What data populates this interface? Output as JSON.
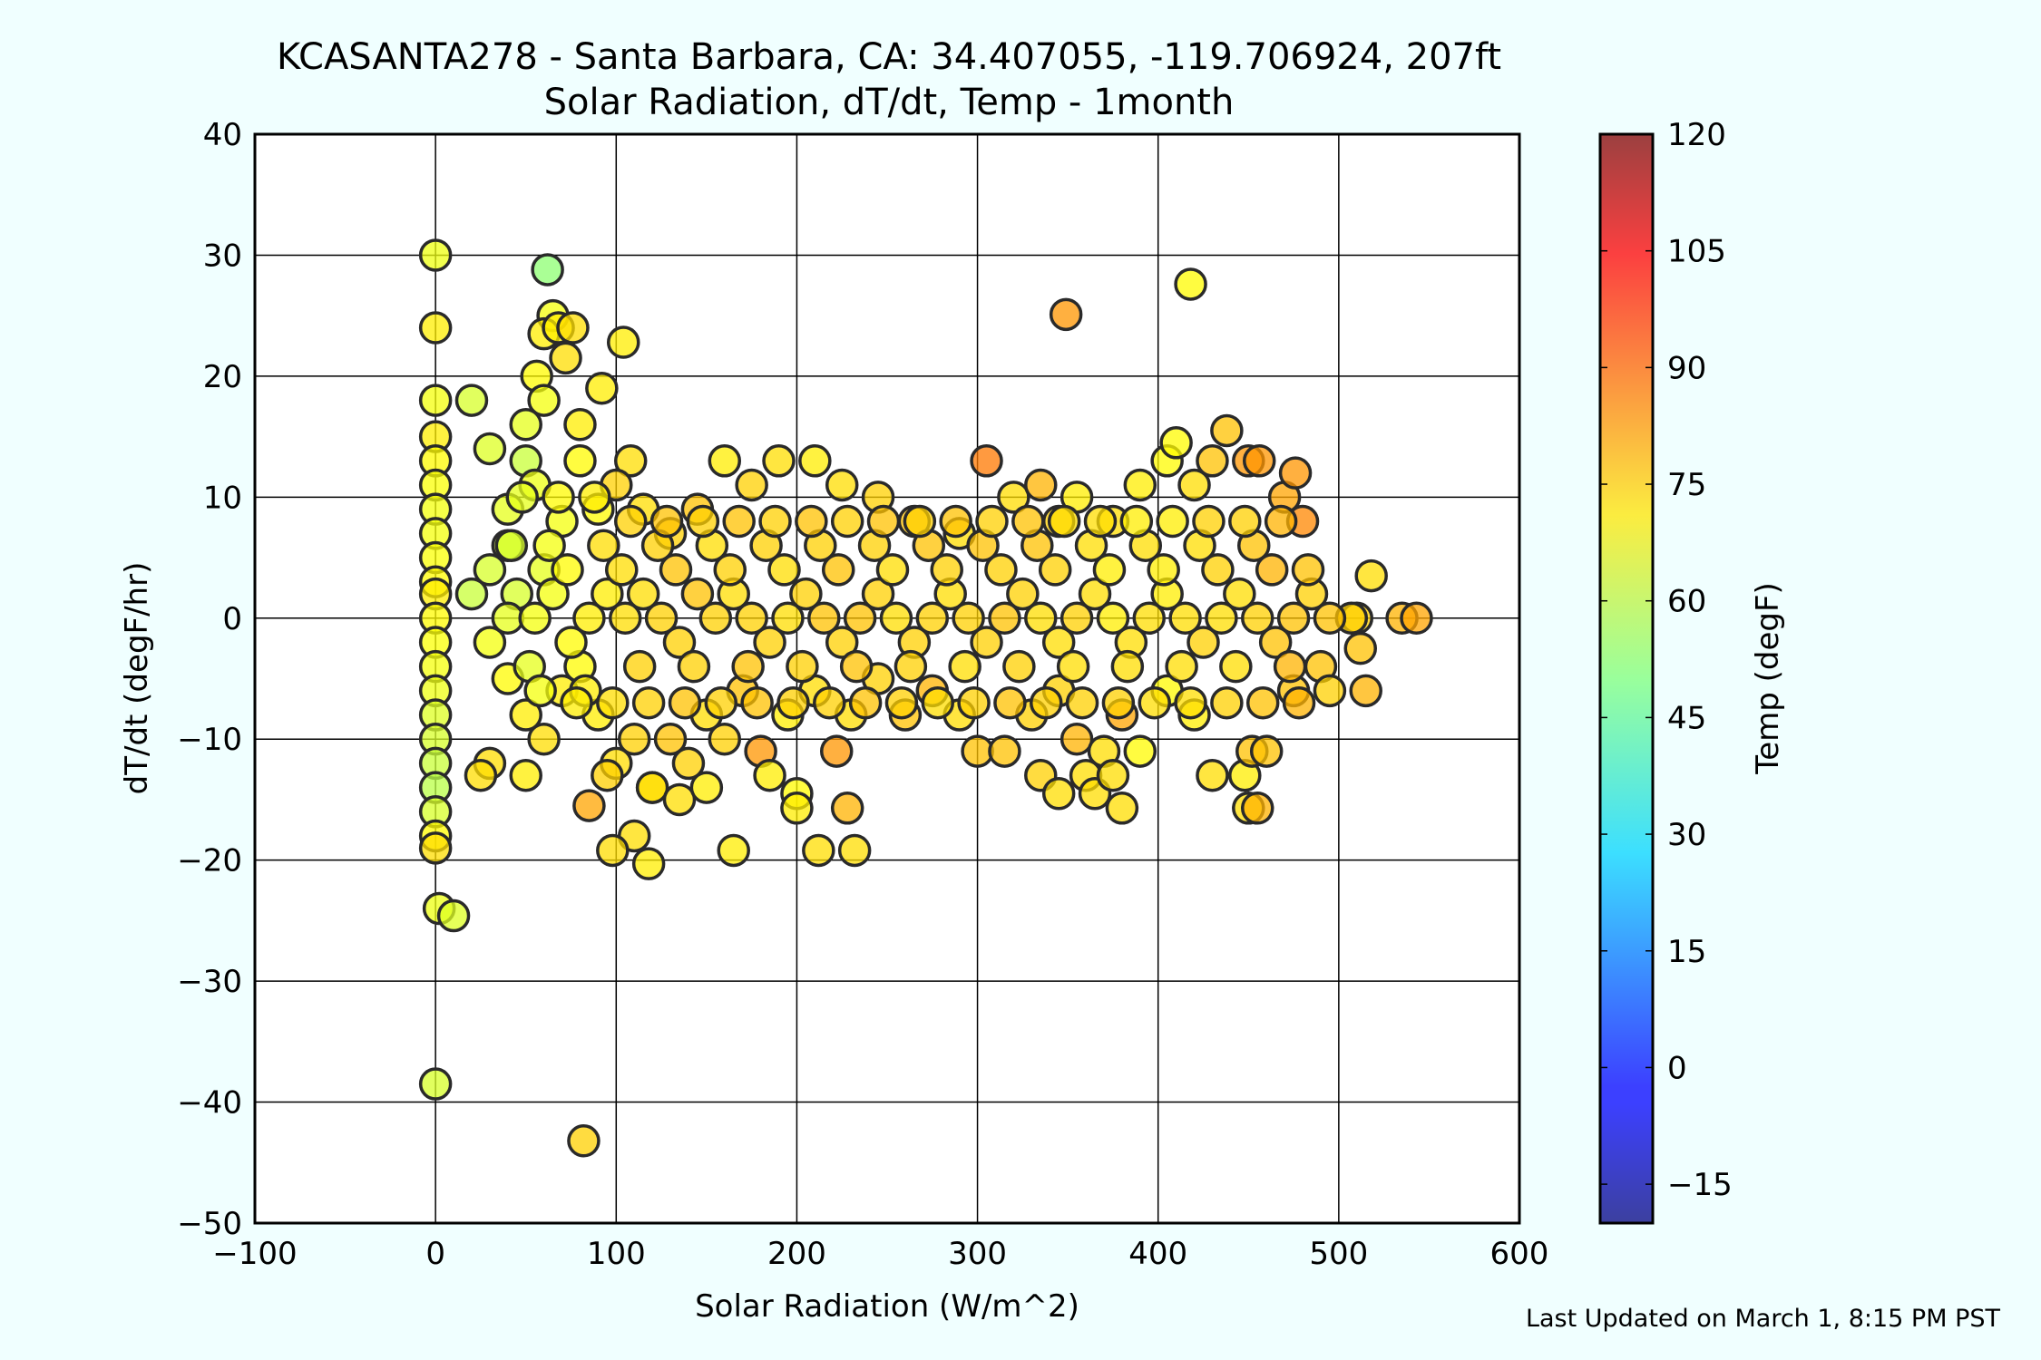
{
  "chart_data": {
    "type": "scatter",
    "title": "KCASANTA278 - Santa Barbara, CA: 34.407055, -119.706924, 207ft",
    "subtitle": "Solar Radiation, dT/dt, Temp - 1month",
    "xlabel": "Solar Radiation (W/m^2)",
    "ylabel": "dT/dt (degF/hr)",
    "xlim": [
      -100,
      600
    ],
    "ylim": [
      -50,
      40
    ],
    "xticks": [
      -100,
      0,
      100,
      200,
      300,
      400,
      500,
      600
    ],
    "yticks": [
      -50,
      -40,
      -30,
      -20,
      -10,
      0,
      10,
      20,
      30,
      40
    ],
    "grid": true,
    "colorbar": {
      "label": "Temp (degF)",
      "range": [
        -20,
        120
      ],
      "ticks": [
        -15,
        0,
        15,
        30,
        45,
        60,
        75,
        90,
        105,
        120
      ],
      "colormap": "jet"
    },
    "footer": "Last Updated on March 1, 8:15 PM PST",
    "points": [
      [
        0,
        30,
        65
      ],
      [
        0,
        24,
        70
      ],
      [
        0,
        18,
        66
      ],
      [
        0,
        15,
        70
      ],
      [
        0,
        13,
        68
      ],
      [
        0,
        11,
        67
      ],
      [
        0,
        9,
        66
      ],
      [
        0,
        7,
        66
      ],
      [
        0,
        5,
        67
      ],
      [
        0,
        3,
        68
      ],
      [
        0,
        2,
        70
      ],
      [
        0,
        0,
        68
      ],
      [
        0,
        -2,
        67
      ],
      [
        0,
        -4,
        66
      ],
      [
        0,
        -6,
        65
      ],
      [
        0,
        -8,
        63
      ],
      [
        0,
        -10,
        62
      ],
      [
        0,
        -12,
        60
      ],
      [
        0,
        -14,
        58
      ],
      [
        0,
        -16,
        62
      ],
      [
        0,
        -18,
        68
      ],
      [
        0,
        -19,
        72
      ],
      [
        0,
        -38.5,
        62
      ],
      [
        2,
        -24,
        65
      ],
      [
        10,
        -24.6,
        63
      ],
      [
        20,
        18,
        62
      ],
      [
        30,
        14,
        63
      ],
      [
        50,
        13,
        60
      ],
      [
        62,
        28.8,
        52
      ],
      [
        65,
        25,
        66
      ],
      [
        60,
        23.5,
        70
      ],
      [
        68,
        24,
        70
      ],
      [
        76,
        24,
        72
      ],
      [
        72,
        21.5,
        72
      ],
      [
        56,
        20,
        68
      ],
      [
        60,
        18,
        66
      ],
      [
        50,
        16,
        64
      ],
      [
        80,
        16,
        70
      ],
      [
        92,
        19,
        70
      ],
      [
        104,
        22.8,
        70
      ],
      [
        80,
        13,
        68
      ],
      [
        108,
        13,
        72
      ],
      [
        55,
        11,
        65
      ],
      [
        40,
        9,
        64
      ],
      [
        40,
        6,
        62
      ],
      [
        30,
        4,
        62
      ],
      [
        20,
        2,
        60
      ],
      [
        45,
        2,
        62
      ],
      [
        60,
        4,
        64
      ],
      [
        70,
        8,
        66
      ],
      [
        90,
        9,
        68
      ],
      [
        100,
        11,
        74
      ],
      [
        115,
        9,
        72
      ],
      [
        130,
        7,
        74
      ],
      [
        145,
        9,
        76
      ],
      [
        160,
        13,
        70
      ],
      [
        175,
        11,
        74
      ],
      [
        190,
        13,
        72
      ],
      [
        210,
        13,
        70
      ],
      [
        225,
        11,
        72
      ],
      [
        245,
        10,
        74
      ],
      [
        265,
        8,
        76
      ],
      [
        290,
        7,
        72
      ],
      [
        305,
        13,
        86
      ],
      [
        320,
        10,
        72
      ],
      [
        335,
        11,
        78
      ],
      [
        345,
        8,
        74
      ],
      [
        355,
        10,
        70
      ],
      [
        375,
        8,
        72
      ],
      [
        390,
        11,
        70
      ],
      [
        405,
        13,
        68
      ],
      [
        410,
        14.5,
        68
      ],
      [
        420,
        11,
        72
      ],
      [
        430,
        13,
        76
      ],
      [
        438,
        15.5,
        76
      ],
      [
        450,
        13,
        82
      ],
      [
        456,
        13,
        82
      ],
      [
        470,
        10,
        80
      ],
      [
        476,
        12,
        82
      ],
      [
        480,
        8,
        84
      ],
      [
        30,
        -2,
        66
      ],
      [
        40,
        -5,
        68
      ],
      [
        50,
        -8,
        70
      ],
      [
        60,
        -10,
        72
      ],
      [
        70,
        -6,
        70
      ],
      [
        80,
        -4,
        68
      ],
      [
        90,
        -8,
        70
      ],
      [
        100,
        -12,
        72
      ],
      [
        110,
        -10,
        74
      ],
      [
        120,
        -14,
        72
      ],
      [
        130,
        -10,
        76
      ],
      [
        140,
        -12,
        74
      ],
      [
        150,
        -8,
        72
      ],
      [
        160,
        -10,
        74
      ],
      [
        170,
        -6,
        76
      ],
      [
        180,
        -11,
        82
      ],
      [
        195,
        -8,
        70
      ],
      [
        210,
        -6,
        72
      ],
      [
        222,
        -11,
        82
      ],
      [
        230,
        -8,
        72
      ],
      [
        245,
        -5,
        74
      ],
      [
        260,
        -8,
        76
      ],
      [
        275,
        -6,
        78
      ],
      [
        290,
        -8,
        72
      ],
      [
        300,
        -11,
        76
      ],
      [
        315,
        -11,
        76
      ],
      [
        330,
        -8,
        74
      ],
      [
        345,
        -6,
        74
      ],
      [
        355,
        -10,
        78
      ],
      [
        370,
        -11,
        72
      ],
      [
        380,
        -8,
        80
      ],
      [
        390,
        -11,
        68
      ],
      [
        405,
        -6,
        68
      ],
      [
        420,
        -8,
        70
      ],
      [
        430,
        -13,
        72
      ],
      [
        448,
        -13,
        70
      ],
      [
        452,
        -11,
        76
      ],
      [
        460,
        -11,
        76
      ],
      [
        475,
        -6,
        76
      ],
      [
        490,
        -4,
        76
      ],
      [
        495,
        -6,
        74
      ],
      [
        515,
        -6,
        78
      ],
      [
        50,
        -13,
        70
      ],
      [
        30,
        -12,
        72
      ],
      [
        25,
        -13,
        72
      ],
      [
        85,
        -15.5,
        80
      ],
      [
        95,
        -13,
        74
      ],
      [
        110,
        -18,
        72
      ],
      [
        98,
        -19.2,
        72
      ],
      [
        118,
        -20.3,
        70
      ],
      [
        120,
        -14,
        72
      ],
      [
        135,
        -15,
        72
      ],
      [
        150,
        -14,
        70
      ],
      [
        165,
        -19.2,
        70
      ],
      [
        185,
        -13,
        70
      ],
      [
        200,
        -14.5,
        68
      ],
      [
        200,
        -15.7,
        70
      ],
      [
        212,
        -19.2,
        72
      ],
      [
        228,
        -15.7,
        78
      ],
      [
        232,
        -19.2,
        72
      ],
      [
        335,
        -13,
        74
      ],
      [
        345,
        -14.5,
        72
      ],
      [
        360,
        -13,
        72
      ],
      [
        365,
        -14.5,
        72
      ],
      [
        375,
        -13,
        72
      ],
      [
        380,
        -15.7,
        72
      ],
      [
        450,
        -15.7,
        72
      ],
      [
        455,
        -15.7,
        78
      ],
      [
        82,
        -43.2,
        74
      ],
      [
        349,
        25.1,
        82
      ],
      [
        418,
        27.6,
        68
      ],
      [
        518,
        3.5,
        72
      ],
      [
        510,
        0,
        74
      ],
      [
        507,
        0,
        74
      ],
      [
        535,
        0,
        78
      ],
      [
        543,
        0,
        80
      ],
      [
        512,
        -2.5,
        76
      ],
      [
        40,
        0,
        64
      ],
      [
        55,
        0,
        66
      ],
      [
        65,
        2,
        66
      ],
      [
        75,
        -2,
        68
      ],
      [
        85,
        0,
        70
      ],
      [
        95,
        2,
        70
      ],
      [
        105,
        0,
        72
      ],
      [
        115,
        2,
        72
      ],
      [
        125,
        0,
        74
      ],
      [
        135,
        -2,
        74
      ],
      [
        145,
        2,
        76
      ],
      [
        155,
        0,
        74
      ],
      [
        165,
        2,
        72
      ],
      [
        175,
        0,
        74
      ],
      [
        185,
        -2,
        74
      ],
      [
        195,
        0,
        72
      ],
      [
        205,
        2,
        74
      ],
      [
        215,
        0,
        76
      ],
      [
        225,
        -2,
        74
      ],
      [
        235,
        0,
        76
      ],
      [
        245,
        2,
        74
      ],
      [
        255,
        0,
        72
      ],
      [
        265,
        -2,
        74
      ],
      [
        275,
        0,
        74
      ],
      [
        285,
        2,
        72
      ],
      [
        295,
        0,
        74
      ],
      [
        305,
        -2,
        74
      ],
      [
        315,
        0,
        76
      ],
      [
        325,
        2,
        74
      ],
      [
        335,
        0,
        72
      ],
      [
        345,
        -2,
        72
      ],
      [
        355,
        0,
        74
      ],
      [
        365,
        2,
        72
      ],
      [
        375,
        0,
        70
      ],
      [
        385,
        -2,
        72
      ],
      [
        395,
        0,
        72
      ],
      [
        405,
        2,
        70
      ],
      [
        415,
        0,
        72
      ],
      [
        425,
        -2,
        74
      ],
      [
        435,
        0,
        72
      ],
      [
        445,
        2,
        72
      ],
      [
        455,
        0,
        74
      ],
      [
        465,
        -2,
        76
      ],
      [
        475,
        0,
        76
      ],
      [
        485,
        2,
        74
      ],
      [
        495,
        0,
        76
      ],
      [
        42,
        6,
        62
      ],
      [
        52,
        -4,
        64
      ],
      [
        63,
        6,
        66
      ],
      [
        73,
        4,
        68
      ],
      [
        83,
        -6,
        70
      ],
      [
        93,
        6,
        72
      ],
      [
        103,
        4,
        72
      ],
      [
        113,
        -4,
        74
      ],
      [
        123,
        6,
        74
      ],
      [
        133,
        4,
        76
      ],
      [
        143,
        -4,
        74
      ],
      [
        153,
        6,
        72
      ],
      [
        163,
        4,
        74
      ],
      [
        173,
        -4,
        76
      ],
      [
        183,
        6,
        74
      ],
      [
        193,
        4,
        72
      ],
      [
        203,
        -4,
        74
      ],
      [
        213,
        6,
        74
      ],
      [
        223,
        4,
        76
      ],
      [
        233,
        -4,
        76
      ],
      [
        243,
        6,
        74
      ],
      [
        253,
        4,
        72
      ],
      [
        263,
        -4,
        74
      ],
      [
        273,
        6,
        76
      ],
      [
        283,
        4,
        74
      ],
      [
        293,
        -4,
        72
      ],
      [
        303,
        6,
        76
      ],
      [
        313,
        4,
        74
      ],
      [
        323,
        -4,
        74
      ],
      [
        333,
        6,
        76
      ],
      [
        343,
        4,
        74
      ],
      [
        353,
        -4,
        72
      ],
      [
        363,
        6,
        72
      ],
      [
        373,
        4,
        70
      ],
      [
        383,
        -4,
        72
      ],
      [
        393,
        6,
        72
      ],
      [
        403,
        4,
        70
      ],
      [
        413,
        -4,
        72
      ],
      [
        423,
        6,
        72
      ],
      [
        433,
        4,
        74
      ],
      [
        443,
        -4,
        72
      ],
      [
        453,
        6,
        76
      ],
      [
        463,
        4,
        78
      ],
      [
        473,
        -4,
        78
      ],
      [
        483,
        4,
        76
      ],
      [
        48,
        10,
        64
      ],
      [
        58,
        -6,
        66
      ],
      [
        68,
        10,
        68
      ],
      [
        78,
        -7,
        70
      ],
      [
        88,
        10,
        70
      ],
      [
        98,
        -7,
        72
      ],
      [
        108,
        8,
        74
      ],
      [
        118,
        -7,
        74
      ],
      [
        128,
        8,
        76
      ],
      [
        138,
        -7,
        76
      ],
      [
        148,
        8,
        74
      ],
      [
        158,
        -7,
        74
      ],
      [
        168,
        8,
        76
      ],
      [
        178,
        -7,
        76
      ],
      [
        188,
        8,
        74
      ],
      [
        198,
        -7,
        74
      ],
      [
        208,
        8,
        76
      ],
      [
        218,
        -7,
        74
      ],
      [
        228,
        8,
        74
      ],
      [
        238,
        -7,
        76
      ],
      [
        248,
        8,
        76
      ],
      [
        258,
        -7,
        74
      ],
      [
        268,
        8,
        74
      ],
      [
        278,
        -7,
        72
      ],
      [
        288,
        8,
        76
      ],
      [
        298,
        -7,
        74
      ],
      [
        308,
        8,
        74
      ],
      [
        318,
        -7,
        76
      ],
      [
        328,
        8,
        76
      ],
      [
        338,
        -7,
        74
      ],
      [
        348,
        8,
        72
      ],
      [
        358,
        -7,
        74
      ],
      [
        368,
        8,
        72
      ],
      [
        378,
        -7,
        74
      ],
      [
        388,
        8,
        70
      ],
      [
        398,
        -7,
        72
      ],
      [
        408,
        8,
        70
      ],
      [
        418,
        -7,
        72
      ],
      [
        428,
        8,
        74
      ],
      [
        438,
        -7,
        74
      ],
      [
        448,
        8,
        74
      ],
      [
        458,
        -7,
        76
      ],
      [
        468,
        8,
        78
      ],
      [
        478,
        -7,
        78
      ]
    ]
  }
}
